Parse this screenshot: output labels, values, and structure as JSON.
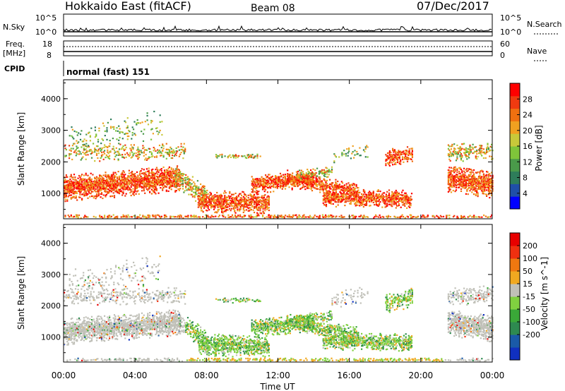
{
  "header": {
    "title": "Hokkaido East (fitACF)",
    "beam": "Beam 08",
    "date": "07/Dec/2017"
  },
  "top_panels": {
    "nsky_label": "N.Sky",
    "nsearch_label": "N.Search",
    "noise_ticks": [
      "10^5",
      "10^0"
    ],
    "freq_label": "Freq.",
    "freq_unit": "[MHz]",
    "freq_ticks": [
      "18",
      "8"
    ],
    "nave_label": "Nave",
    "nave_ticks": [
      "60",
      "0"
    ],
    "cpid_label": "CPID",
    "cpid_value": "normal (fast) 151"
  },
  "chart_data": [
    {
      "type": "heatmap",
      "name": "power",
      "ylabel": "Slant Range [km]",
      "xlabel": "",
      "yticks": [
        1000,
        2000,
        3000,
        4000
      ],
      "ylim": [
        200,
        4600
      ],
      "colorbar": {
        "label": "Power [dB]",
        "ticks": [
          4,
          8,
          12,
          16,
          20,
          24,
          28
        ],
        "range": [
          0,
          32
        ],
        "colors": [
          "#0000ff",
          "#1f4fa8",
          "#2e7d5a",
          "#4a9a4a",
          "#7fc43a",
          "#c8c83a",
          "#f0a020",
          "#f07010",
          "#f03a10",
          "#ff0000"
        ]
      }
    },
    {
      "type": "heatmap",
      "name": "velocity",
      "ylabel": "Slant Range [km]",
      "xlabel": "Time UT",
      "yticks": [
        1000,
        2000,
        3000,
        4000
      ],
      "ylim": [
        200,
        4600
      ],
      "xticks": [
        "00:00",
        "04:00",
        "08:00",
        "12:00",
        "16:00",
        "20:00",
        "00:00"
      ],
      "colorbar": {
        "label": "Velocity [m s^-1]",
        "ticks": [
          200,
          100,
          50,
          15,
          -15,
          -50,
          -100,
          -200
        ],
        "colors": [
          "#1030c0",
          "#1a5aa8",
          "#2e8a50",
          "#3aa838",
          "#80d040",
          "#c0c0b8",
          "#f0a820",
          "#f07810",
          "#f03010",
          "#e80000"
        ]
      }
    }
  ],
  "colors": {
    "gs_gray": "#c0c0b8"
  }
}
